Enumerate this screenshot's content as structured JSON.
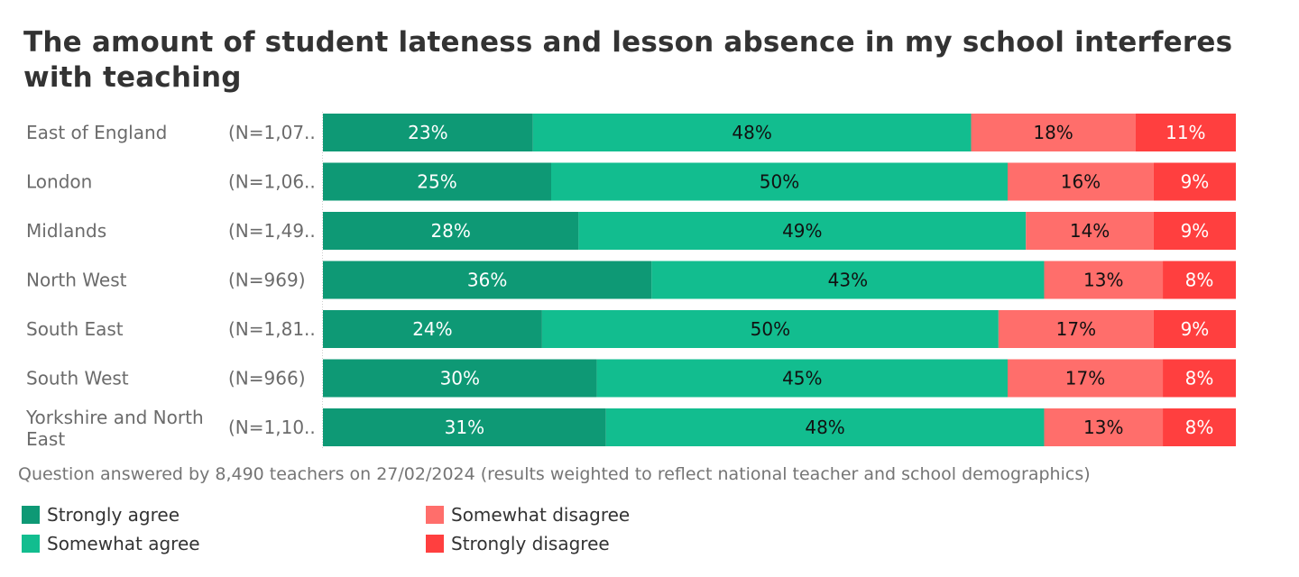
{
  "title": "The amount of student lateness and lesson absence in my school interferes with teaching",
  "footnote": "Question answered by 8,490 teachers on 27/02/2024 (results weighted to reflect national teacher and school demographics)",
  "colors": {
    "strongly_agree": "#0E9975",
    "somewhat_agree": "#12BD8F",
    "somewhat_disagree": "#FF6E6B",
    "strongly_disagree": "#FF3F3F",
    "row_label": "#6B6B6B"
  },
  "legend": [
    {
      "label": "Strongly agree",
      "color": "#0E9975"
    },
    {
      "label": "Somewhat agree",
      "color": "#12BD8F"
    },
    {
      "label": "Somewhat disagree",
      "color": "#FF6E6B"
    },
    {
      "label": "Strongly disagree",
      "color": "#FF3F3F"
    }
  ],
  "chart_data": {
    "type": "bar",
    "orientation": "horizontal",
    "stacked": true,
    "unit": "%",
    "categories": [
      "East of England",
      "London",
      "Midlands",
      "North West",
      "South East",
      "South West",
      "Yorkshire and North East"
    ],
    "category_lines": [
      [
        "East of England"
      ],
      [
        "London"
      ],
      [
        "Midlands"
      ],
      [
        "North West"
      ],
      [
        "South East"
      ],
      [
        "South West"
      ],
      [
        "Yorkshire and North",
        "East"
      ]
    ],
    "n_labels": [
      "(N=1,07..",
      "(N=1,06..",
      "(N=1,49..",
      "(N=969)",
      "(N=1,81..",
      "(N=966)",
      "(N=1,10.."
    ],
    "series": [
      {
        "name": "Strongly agree",
        "color": "#0E9975",
        "label_color": "#ffffff",
        "values": [
          23,
          25,
          28,
          36,
          24,
          30,
          31
        ]
      },
      {
        "name": "Somewhat agree",
        "color": "#12BD8F",
        "label_color": "#111111",
        "values": [
          48,
          50,
          49,
          43,
          50,
          45,
          48
        ]
      },
      {
        "name": "Somewhat disagree",
        "color": "#FF6E6B",
        "label_color": "#111111",
        "values": [
          18,
          16,
          14,
          13,
          17,
          17,
          13
        ]
      },
      {
        "name": "Strongly disagree",
        "color": "#FF3F3F",
        "label_color": "#ffffff",
        "values": [
          11,
          9,
          9,
          8,
          9,
          8,
          8
        ]
      }
    ]
  }
}
